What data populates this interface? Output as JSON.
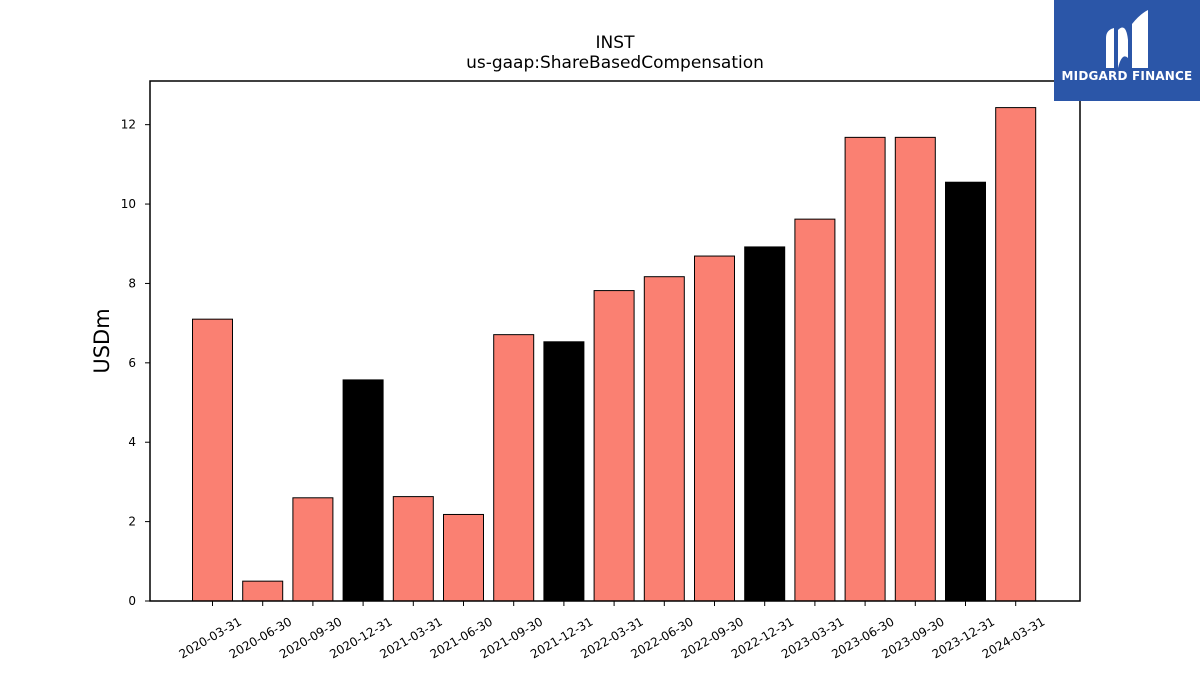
{
  "chart_data": {
    "type": "bar",
    "title": "INST",
    "subtitle": "us-gaap:ShareBasedCompensation",
    "ylabel": "USDm",
    "xlabel": "",
    "ylim": [
      0,
      13.1
    ],
    "yticks": [
      0,
      2,
      4,
      6,
      8,
      10,
      12
    ],
    "categories": [
      "2020-03-31",
      "2020-06-30",
      "2020-09-30",
      "2020-12-31",
      "2021-03-31",
      "2021-06-30",
      "2021-09-30",
      "2021-12-31",
      "2022-03-31",
      "2022-06-30",
      "2022-09-30",
      "2022-12-31",
      "2023-03-31",
      "2023-06-30",
      "2023-09-30",
      "2023-12-31",
      "2024-03-31"
    ],
    "values": [
      7.1,
      0.5,
      2.6,
      5.57,
      2.63,
      2.18,
      6.71,
      6.53,
      7.82,
      8.17,
      8.69,
      8.92,
      9.62,
      11.68,
      11.68,
      10.55,
      12.43
    ],
    "colors": [
      "#fa8072",
      "#fa8072",
      "#fa8072",
      "#000000",
      "#fa8072",
      "#fa8072",
      "#fa8072",
      "#000000",
      "#fa8072",
      "#fa8072",
      "#fa8072",
      "#000000",
      "#fa8072",
      "#fa8072",
      "#fa8072",
      "#000000",
      "#fa8072"
    ],
    "grid": false,
    "legend": "none"
  },
  "logo": {
    "text": "MIDGARD FINANCE",
    "background": "#2b56a8"
  }
}
